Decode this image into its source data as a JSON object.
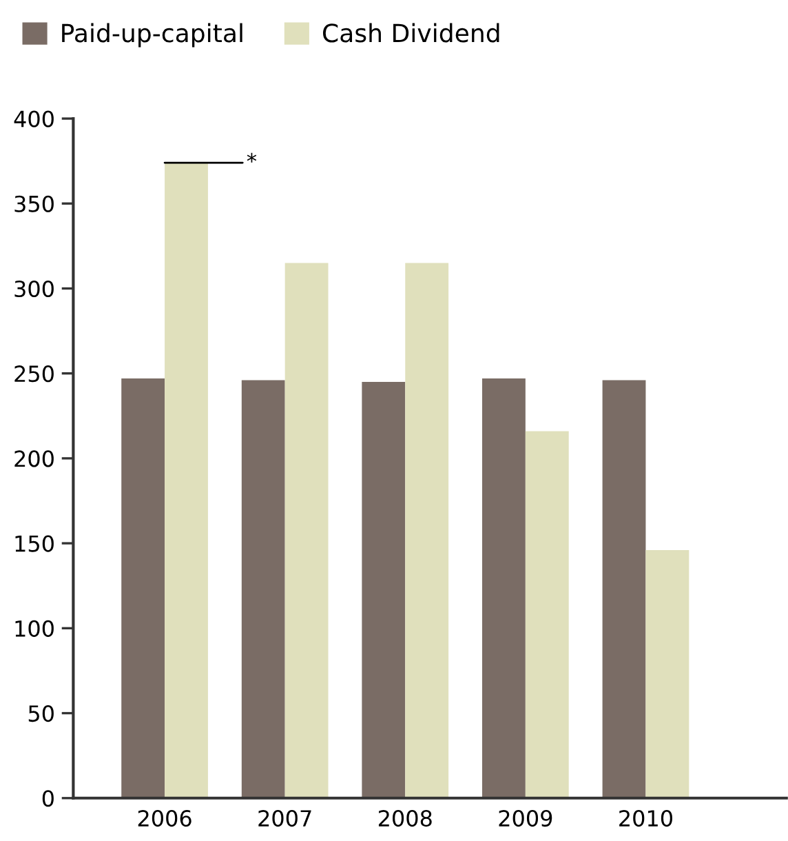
{
  "chart_data": {
    "type": "bar",
    "categories": [
      "2006",
      "2007",
      "2008",
      "2009",
      "2010"
    ],
    "series": [
      {
        "name": "Paid-up-capital",
        "color": "#7a6c65",
        "values": [
          247,
          246,
          245,
          247,
          246
        ]
      },
      {
        "name": "Cash Dividend",
        "color": "#e0e0bc",
        "values": [
          374,
          315,
          315,
          216,
          146
        ]
      }
    ],
    "ylim": [
      0,
      400
    ],
    "yticks": [
      0,
      50,
      100,
      150,
      200,
      250,
      300,
      350,
      400
    ],
    "annotations": [
      {
        "text": "*",
        "x": "2006",
        "y": 374
      }
    ],
    "grid": false,
    "legend": "top left"
  }
}
